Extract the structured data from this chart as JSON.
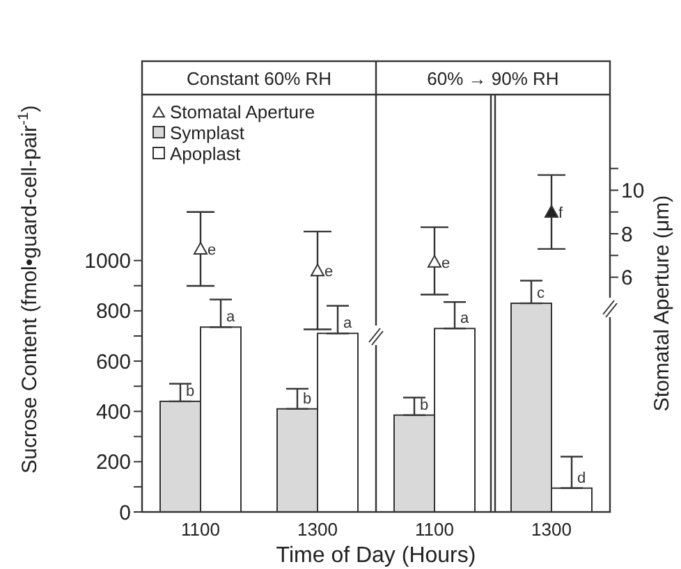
{
  "chart_data": {
    "type": "bar",
    "xlabel": "Time of Day (Hours)",
    "ylabel": "Sucrose Content (fmol•guard-cell-pair$^{-1}$)",
    "y2label": "Stomatal Aperture (μm)",
    "annotations": [
      "Constant 60% RH",
      "60% → 90% RH"
    ],
    "categories": [
      "1100",
      "1300",
      "1100",
      "1300"
    ],
    "series": [
      {
        "name": "Stomatal Aperture",
        "type": "scatter",
        "axis": "y2",
        "marker": "triangle",
        "color": "#333333",
        "colors": [
          "#ffffff",
          "#ffffff",
          "#ffffff",
          "#222222"
        ],
        "values": [
          7.3,
          6.3,
          6.7,
          9.0
        ],
        "errors": [
          [
            5.6,
            9.0
          ],
          [
            3.6,
            8.1
          ],
          [
            5.2,
            8.3
          ],
          [
            7.3,
            10.7
          ]
        ],
        "value_labels": [
          "e",
          "e",
          "e",
          "f"
        ]
      },
      {
        "name": "Symplast",
        "color": "#d9d9d9",
        "values": [
          440,
          410,
          385,
          830
        ],
        "errors": [
          [
            440,
            510
          ],
          [
            410,
            490
          ],
          [
            385,
            455
          ],
          [
            830,
            920
          ]
        ],
        "value_labels": [
          "b",
          "b",
          "b",
          "c"
        ]
      },
      {
        "name": "Apoplast",
        "color": "#ffffff",
        "values": [
          735,
          710,
          730,
          95
        ],
        "errors": [
          [
            735,
            845
          ],
          [
            710,
            820
          ],
          [
            730,
            835
          ],
          [
            95,
            220
          ]
        ],
        "value_labels": [
          "a",
          "a",
          "a",
          "d"
        ]
      }
    ],
    "ylim": [
      0,
      1660
    ],
    "yticks": [
      0,
      {
        "value": 100,
        "label": null
      },
      200,
      {
        "value": 300,
        "label": null
      },
      400,
      {
        "value": 500,
        "label": null
      },
      600,
      {
        "value": 700,
        "label": null
      },
      800,
      {
        "value": 900,
        "label": null
      },
      1000
    ],
    "y2lim": [
      -4.8,
      14.4
    ],
    "y2ticks": [
      6,
      {
        "value": 7,
        "label": null
      },
      8,
      {
        "value": 9,
        "label": null
      },
      10,
      {
        "value": 11,
        "label": null
      }
    ],
    "legend": "top left"
  }
}
